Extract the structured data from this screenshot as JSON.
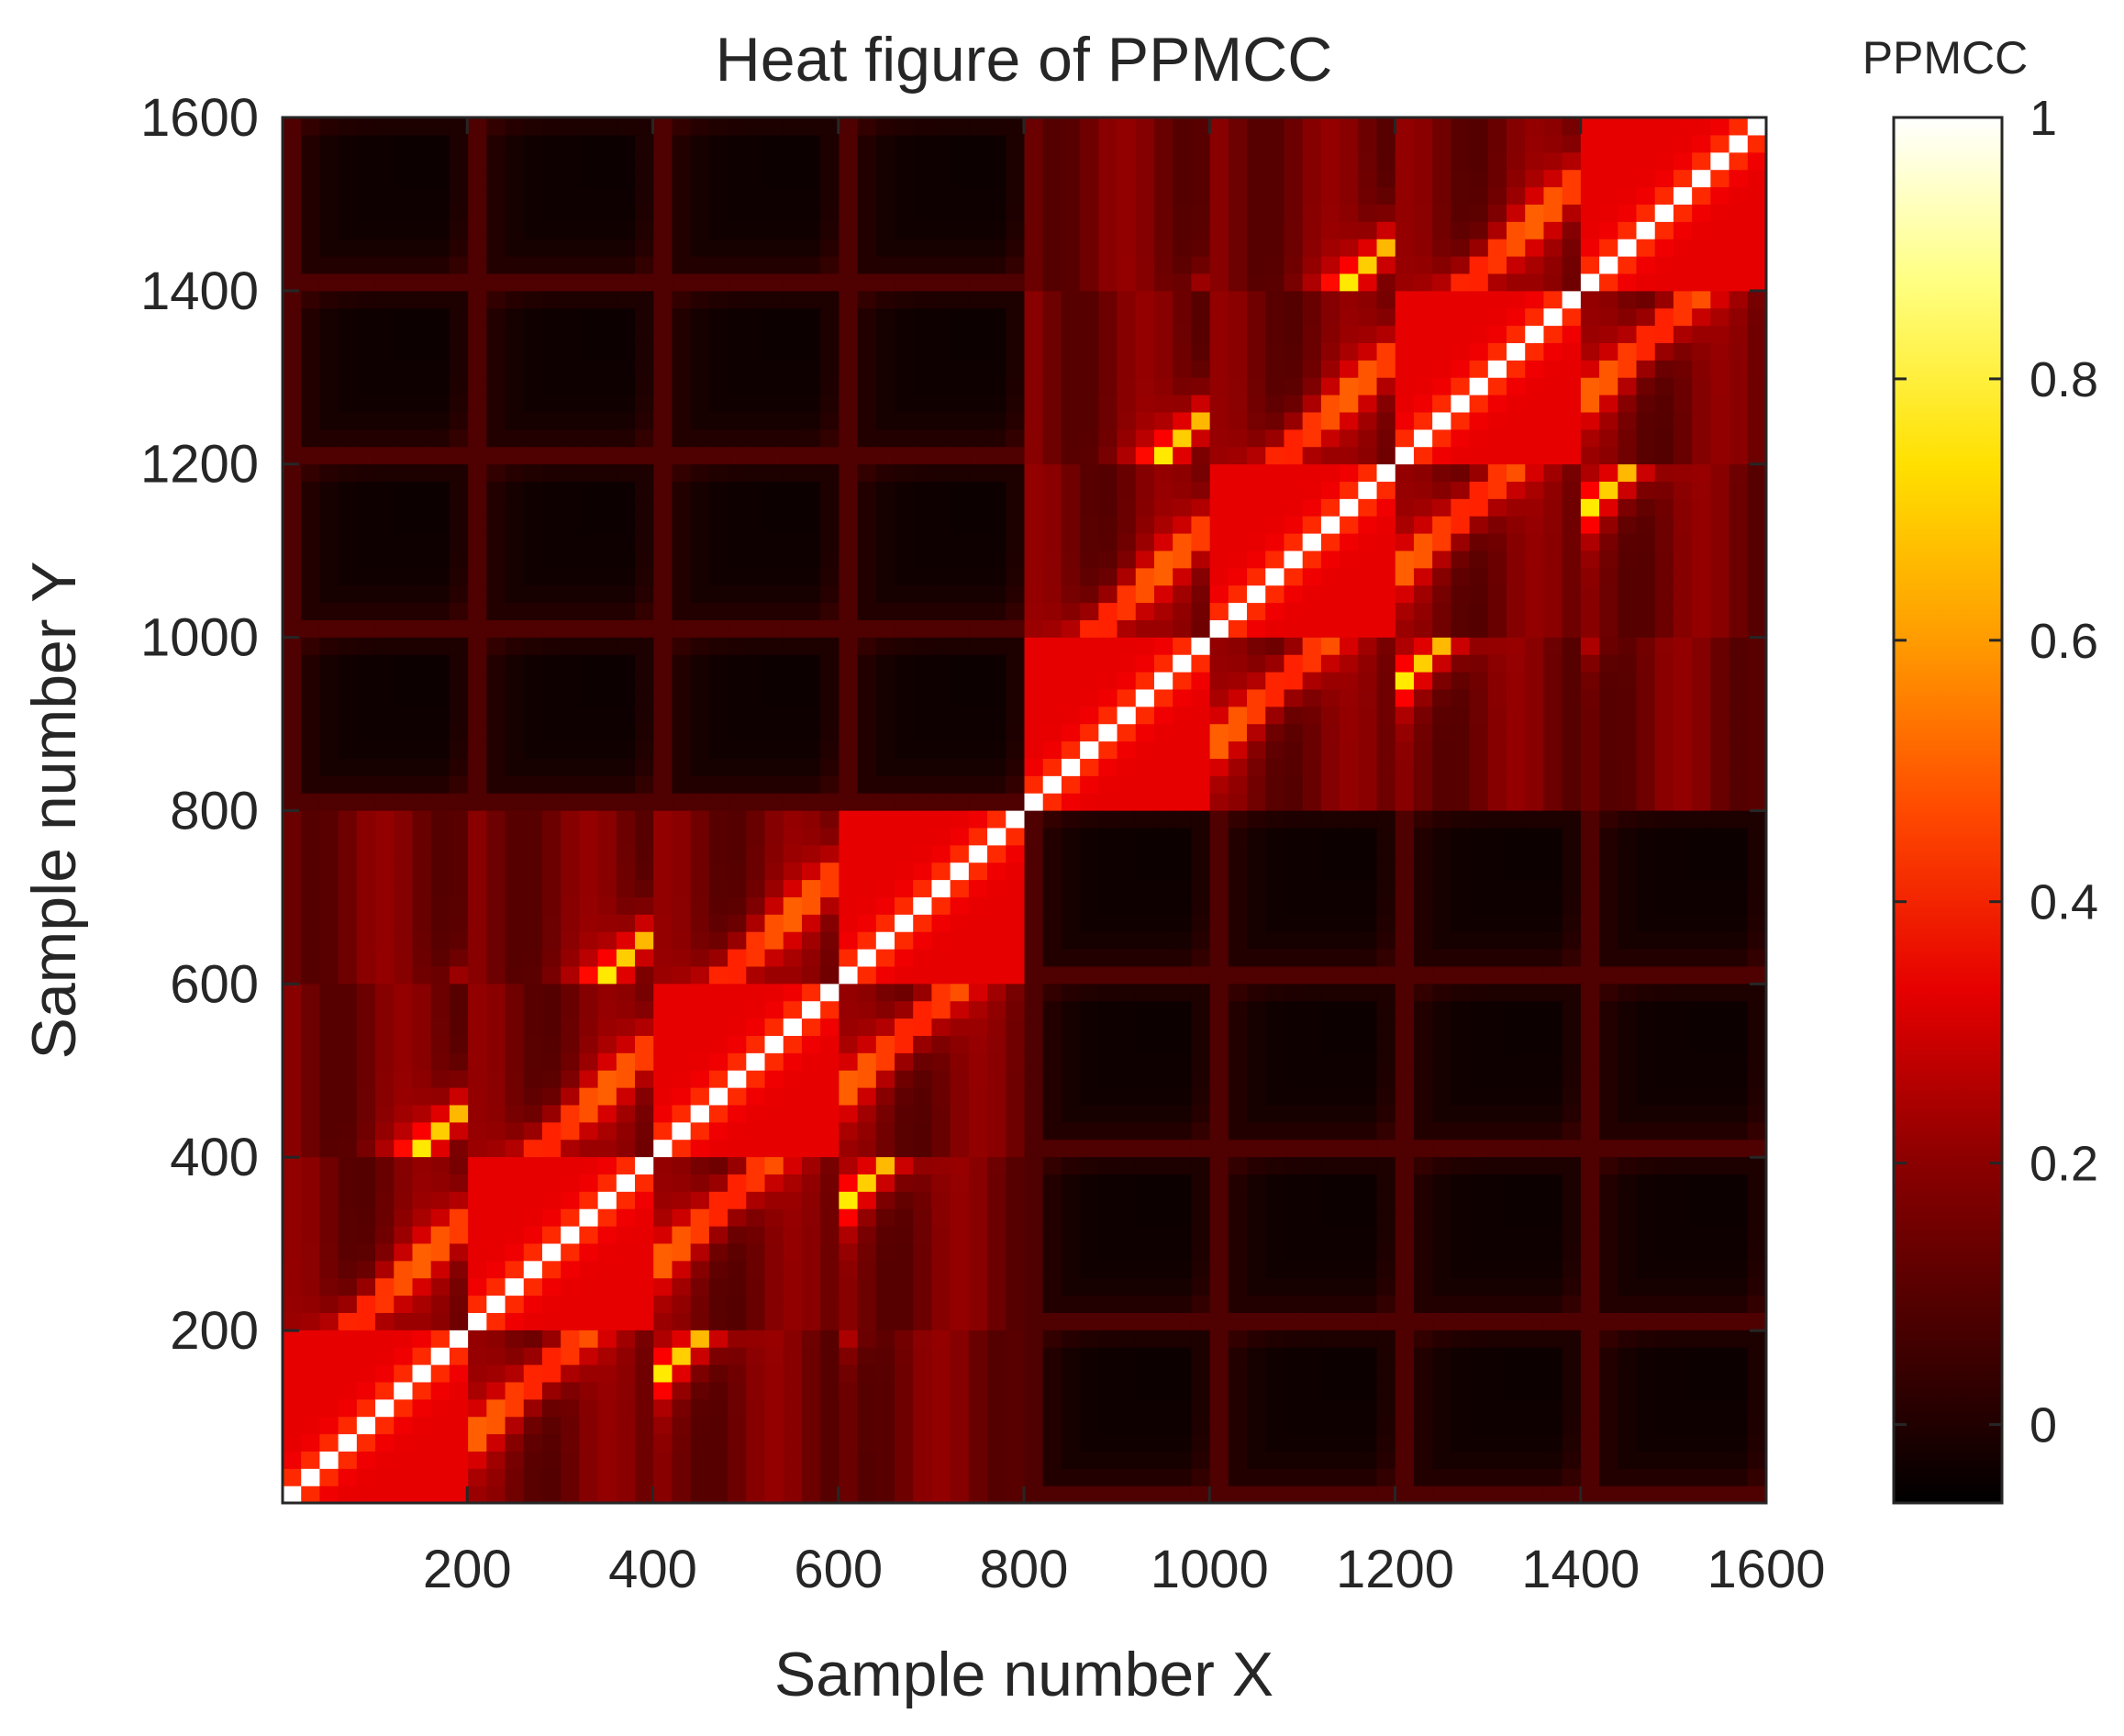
{
  "chart_data": {
    "type": "heatmap",
    "title": "Heat figure of PPMCC",
    "xlabel": "Sample number X",
    "ylabel": "Sample number Y",
    "xlim": [
      1,
      1600
    ],
    "ylim": [
      1,
      1600
    ],
    "xticks": [
      200,
      400,
      600,
      800,
      1000,
      1200,
      1400,
      1600
    ],
    "yticks": [
      200,
      400,
      600,
      800,
      1000,
      1200,
      1400,
      1600
    ],
    "xtick_labels": [
      "200",
      "400",
      "600",
      "800",
      "1000",
      "1200",
      "1400",
      "1600"
    ],
    "ytick_labels": [
      "200",
      "400",
      "600",
      "800",
      "1000",
      "1200",
      "1400",
      "1600"
    ],
    "colormap": "hot",
    "colorbar": {
      "title": "PPMCC",
      "range": [
        -0.06,
        1
      ],
      "ticks": [
        0,
        0.2,
        0.4,
        0.6,
        0.8,
        1
      ],
      "tick_labels": [
        "0",
        "0.2",
        "0.4",
        "0.6",
        "0.8",
        "1"
      ]
    },
    "block_size": 200,
    "n_blocks": 8,
    "block_groups": [
      [
        0,
        1,
        2,
        3
      ],
      [
        4,
        5,
        6,
        7
      ]
    ],
    "diagonal_value": 1.0,
    "within_group_base": 0.25,
    "cross_group_base": 0.0
  }
}
